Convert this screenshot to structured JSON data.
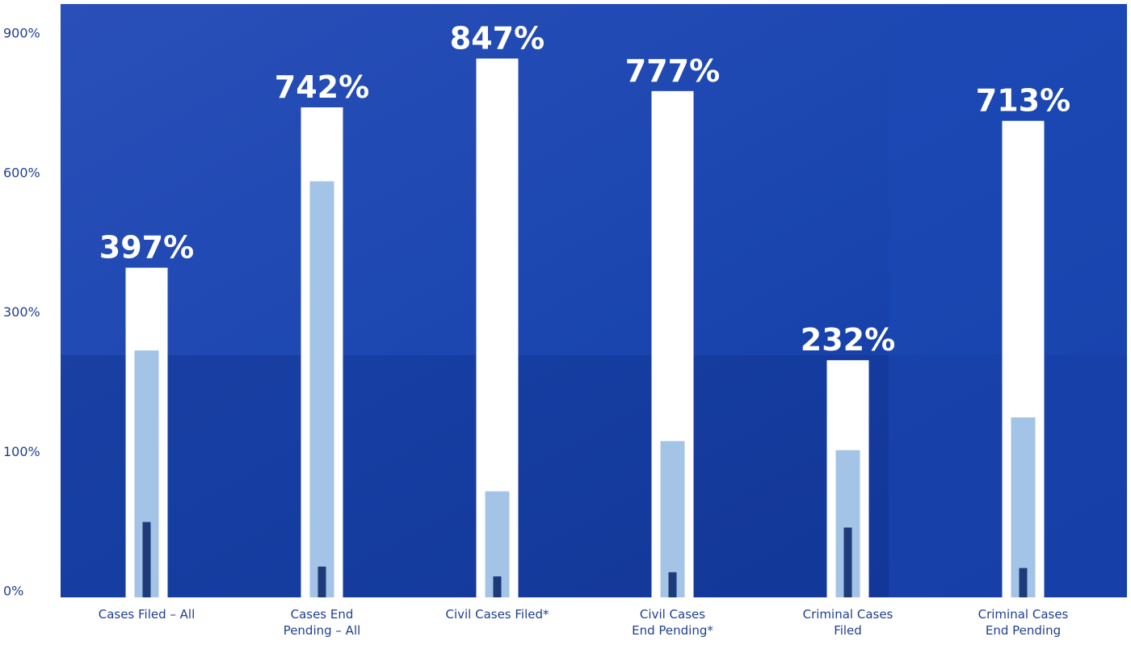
{
  "chart_data": {
    "type": "bar",
    "categories": [
      [
        "Cases Filed – All"
      ],
      [
        "Cases End",
        "Pending – All"
      ],
      [
        "Civil Cases Filed*"
      ],
      [
        "Civil Cases",
        "End Pending*"
      ],
      [
        "Criminal Cases",
        "Filed"
      ],
      [
        "Criminal Cases",
        "End Pending"
      ]
    ],
    "series": [
      {
        "color": "#ffffff",
        "values": [
          397,
          742,
          847,
          777,
          232,
          713
        ],
        "value_labels": [
          "397%",
          "742%",
          "847%",
          "777%",
          "232%",
          "713%"
        ]
      },
      {
        "color": "#a3c4e6",
        "values": [
          246,
          583,
          72,
          116,
          103,
          150
        ]
      },
      {
        "color": "#1d3a7a",
        "values": [
          50,
          18,
          11,
          14,
          46,
          17
        ]
      }
    ],
    "ylim": [
      0,
      900
    ],
    "yticks": [
      {
        "value": 0,
        "label": "0%"
      },
      {
        "value": 100,
        "label": "100%"
      },
      {
        "value": 300,
        "label": "300%"
      },
      {
        "value": 600,
        "label": "600%"
      },
      {
        "value": 900,
        "label": "900%"
      }
    ]
  }
}
